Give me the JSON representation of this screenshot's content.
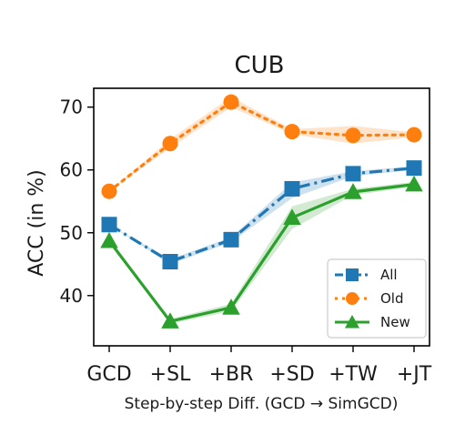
{
  "chart_data": {
    "type": "line",
    "title": "CUB",
    "xlabel": "Step-by-step Diff. (GCD → SimGCD)",
    "ylabel": "ACC (in %)",
    "categories": [
      "GCD",
      "+SL",
      "+BR",
      "+SD",
      "+TW",
      "+JT"
    ],
    "ylim": [
      32,
      73
    ],
    "yticks": [
      40,
      50,
      60,
      70
    ],
    "grid": false,
    "legend_position": "lower-right",
    "series": [
      {
        "name": "All",
        "values": [
          51.3,
          45.4,
          48.9,
          57.0,
          59.4,
          60.3
        ],
        "band_low": [
          51.3,
          45.0,
          48.5,
          55.5,
          59.0,
          60.0
        ],
        "band_high": [
          51.3,
          45.8,
          49.3,
          58.0,
          59.8,
          60.6
        ],
        "color": "#1f77b4",
        "line_style": "dashdot",
        "marker": "square"
      },
      {
        "name": "Old",
        "values": [
          56.6,
          64.2,
          70.8,
          66.1,
          65.5,
          65.6
        ],
        "band_low": [
          56.6,
          63.5,
          70.0,
          65.7,
          64.2,
          65.2
        ],
        "band_high": [
          56.6,
          64.9,
          71.6,
          66.5,
          67.0,
          66.0
        ],
        "color": "#ff7f0e",
        "line_style": "dotted",
        "marker": "circle"
      },
      {
        "name": "New",
        "values": [
          48.7,
          35.9,
          38.1,
          52.4,
          56.5,
          57.7
        ],
        "band_low": [
          48.7,
          35.5,
          37.5,
          50.6,
          56.0,
          57.3
        ],
        "band_high": [
          48.7,
          36.3,
          38.7,
          54.2,
          57.0,
          58.1
        ],
        "color": "#2ca02c",
        "line_style": "solid",
        "marker": "triangle"
      }
    ]
  }
}
